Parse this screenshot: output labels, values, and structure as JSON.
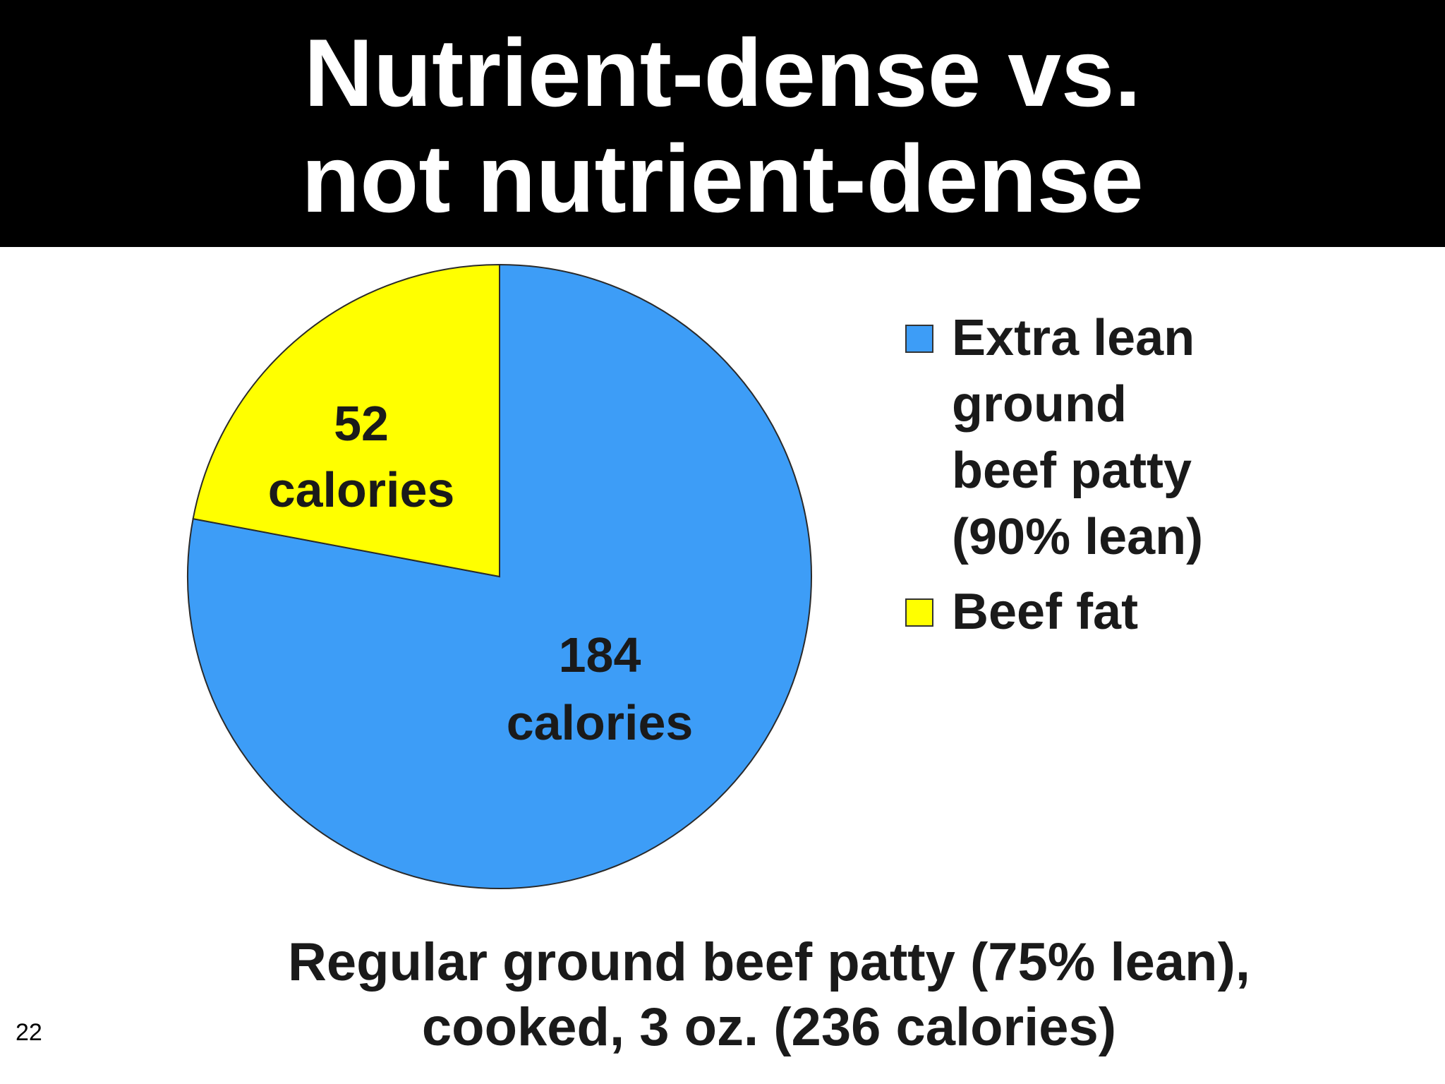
{
  "slide": {
    "title_line1": "Nutrient-dense vs.",
    "title_line2": "not nutrient-dense",
    "caption_line1": "Regular ground beef patty (75% lean),",
    "caption_line2": "cooked, 3 oz. (236 calories)",
    "slide_number": "22"
  },
  "chart_data": {
    "type": "pie",
    "categories": [
      "Extra lean ground beef patty (90% lean)",
      "Beef fat"
    ],
    "values": [
      184,
      52
    ],
    "slice_labels": [
      {
        "line1": "184",
        "line2": "calories"
      },
      {
        "line1": "52",
        "line2": "calories"
      }
    ],
    "colors": [
      "#3d9df7",
      "#ffff00"
    ],
    "legend": [
      {
        "lines": [
          "Extra lean",
          "ground",
          "beef patty",
          "(90% lean)"
        ],
        "color": "#3d9df7"
      },
      {
        "lines": [
          "Beef fat"
        ],
        "color": "#ffff00"
      }
    ],
    "legend_position": "right",
    "start_angle_deg": 0,
    "direction": "clockwise-from-top, blue slice first"
  }
}
